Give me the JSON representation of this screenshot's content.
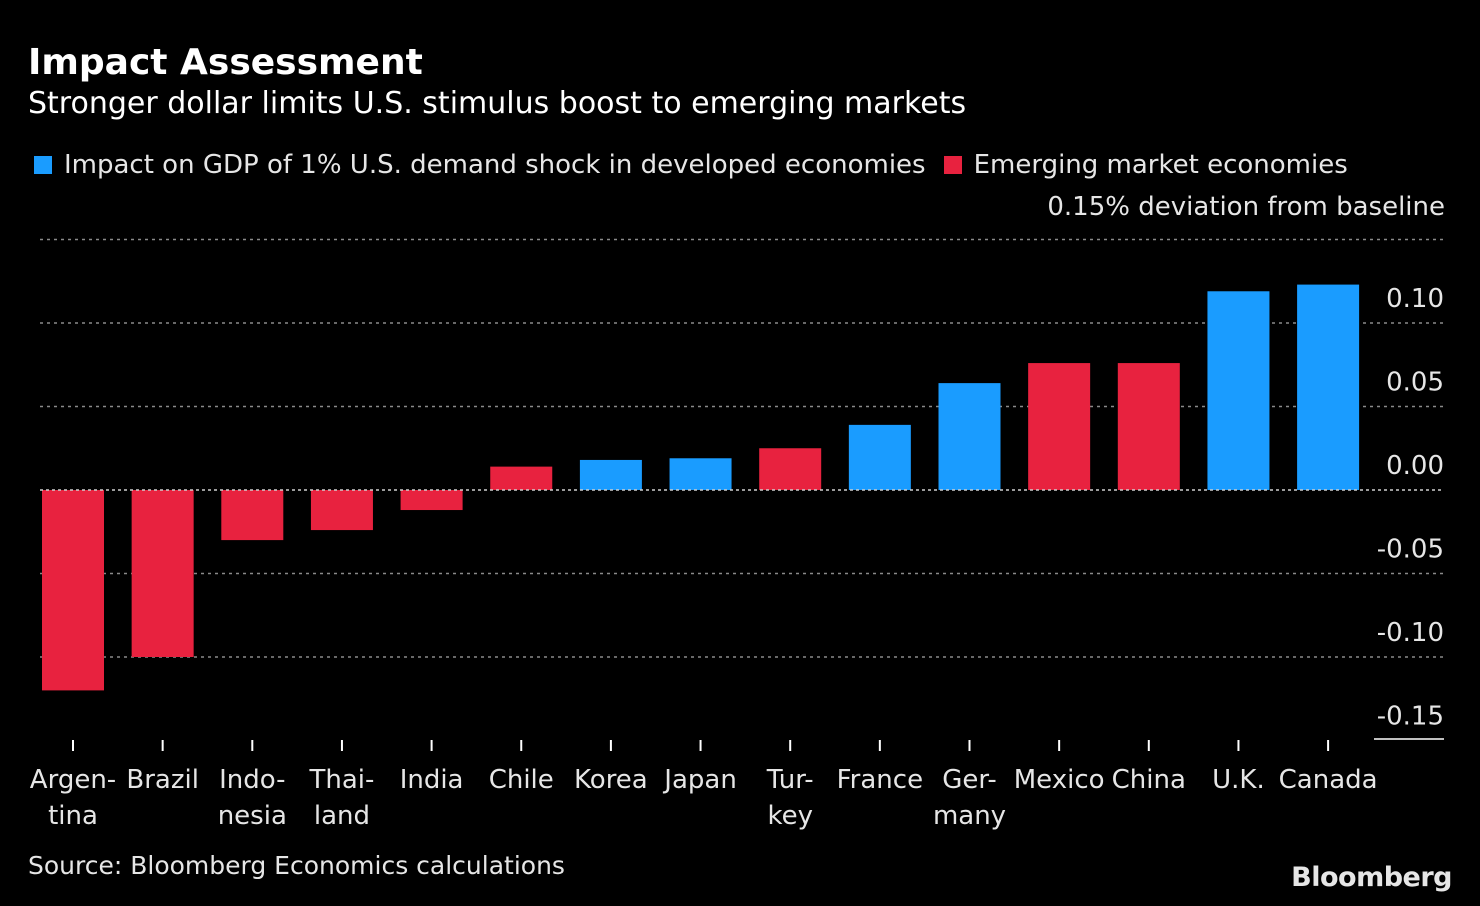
{
  "title": "Impact Assessment",
  "subtitle": "Stronger dollar limits U.S. stimulus boost to emerging markets",
  "legend": [
    {
      "label": "Impact on GDP of 1% U.S. demand shock in developed economies",
      "color": "#1a9cff"
    },
    {
      "label": "Emerging market economies",
      "color": "#e8223f"
    }
  ],
  "unit_label": "0.15% deviation from baseline",
  "source": "Source: Bloomberg Economics calculations",
  "brand": "Bloomberg",
  "chart_data": {
    "type": "bar",
    "categories": [
      [
        "Argen-",
        "tina"
      ],
      [
        "Brazil"
      ],
      [
        "Indo-",
        "nesia"
      ],
      [
        "Thai-",
        "land"
      ],
      [
        "India"
      ],
      [
        "Chile"
      ],
      [
        "Korea"
      ],
      [
        "Japan"
      ],
      [
        "Tur-",
        "key"
      ],
      [
        "France"
      ],
      [
        "Ger-",
        "many"
      ],
      [
        "Mexico"
      ],
      [
        "China"
      ],
      [
        "U.K."
      ],
      [
        "Canada"
      ]
    ],
    "values": [
      -0.12,
      -0.1,
      -0.03,
      -0.024,
      -0.012,
      0.014,
      0.018,
      0.019,
      0.025,
      0.039,
      0.064,
      0.076,
      0.076,
      0.119,
      0.123
    ],
    "groups": [
      "emerging",
      "emerging",
      "emerging",
      "emerging",
      "emerging",
      "emerging",
      "developed",
      "developed",
      "emerging",
      "developed",
      "developed",
      "emerging",
      "emerging",
      "developed",
      "developed"
    ],
    "colors": {
      "developed": "#1a9cff",
      "emerging": "#e8223f"
    },
    "y_ticks": [
      "0.10",
      "0.05",
      "0.00",
      "-0.05",
      "-0.10",
      "-0.15"
    ],
    "y_tick_values": [
      0.1,
      0.05,
      0.0,
      -0.05,
      -0.1,
      -0.15
    ],
    "ylim": [
      -0.15,
      0.15
    ],
    "grid": true
  }
}
